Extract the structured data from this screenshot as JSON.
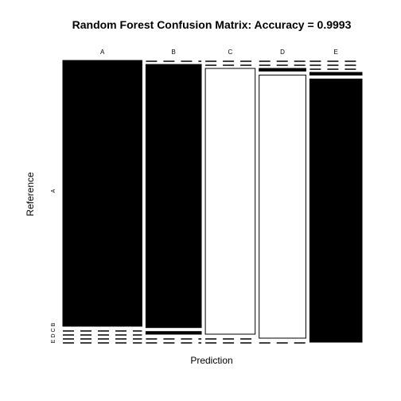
{
  "chart_data": {
    "type": "mosaic",
    "title": "Random Forest Confusion Matrix: Accuracy = 0.9993",
    "xlabel": "Prediction",
    "ylabel": "Reference",
    "columns": [
      "A",
      "B",
      "C",
      "D",
      "E"
    ],
    "rows": [
      "A",
      "B",
      "C",
      "D",
      "E"
    ],
    "column_widths": [
      1,
      0.7,
      0.63,
      0.59,
      0.66
    ],
    "cells": [
      [
        {
          "row": "A",
          "fraction": 1.0,
          "fill": "black"
        },
        {
          "row": "B",
          "fraction": 0,
          "fill": "black"
        },
        {
          "row": "C",
          "fraction": 0,
          "fill": "black"
        },
        {
          "row": "D",
          "fraction": 0,
          "fill": "black"
        },
        {
          "row": "E",
          "fraction": 0,
          "fill": "black"
        }
      ],
      [
        {
          "row": "A",
          "fraction": 0,
          "fill": "black"
        },
        {
          "row": "B",
          "fraction": 0.99,
          "fill": "black"
        },
        {
          "row": "C",
          "fraction": 0.01,
          "fill": "black"
        },
        {
          "row": "D",
          "fraction": 0,
          "fill": "black"
        },
        {
          "row": "E",
          "fraction": 0,
          "fill": "black"
        }
      ],
      [
        {
          "row": "A",
          "fraction": 0,
          "fill": "black"
        },
        {
          "row": "B",
          "fraction": 0,
          "fill": "black"
        },
        {
          "row": "C",
          "fraction": 1.0,
          "fill": "white"
        },
        {
          "row": "D",
          "fraction": 0,
          "fill": "black"
        },
        {
          "row": "E",
          "fraction": 0,
          "fill": "black"
        }
      ],
      [
        {
          "row": "A",
          "fraction": 0,
          "fill": "black"
        },
        {
          "row": "B",
          "fraction": 0,
          "fill": "black"
        },
        {
          "row": "C",
          "fraction": 0.01,
          "fill": "black"
        },
        {
          "row": "D",
          "fraction": 0.99,
          "fill": "white"
        },
        {
          "row": "E",
          "fraction": 0,
          "fill": "black"
        }
      ],
      [
        {
          "row": "A",
          "fraction": 0,
          "fill": "black"
        },
        {
          "row": "B",
          "fraction": 0,
          "fill": "black"
        },
        {
          "row": "C",
          "fraction": 0,
          "fill": "black"
        },
        {
          "row": "D",
          "fraction": 0.01,
          "fill": "black"
        },
        {
          "row": "E",
          "fraction": 0.99,
          "fill": "black"
        }
      ]
    ],
    "row_labels_shown": [
      "A",
      "B",
      "C",
      "D",
      "E"
    ],
    "legend": "none",
    "grid": false
  }
}
